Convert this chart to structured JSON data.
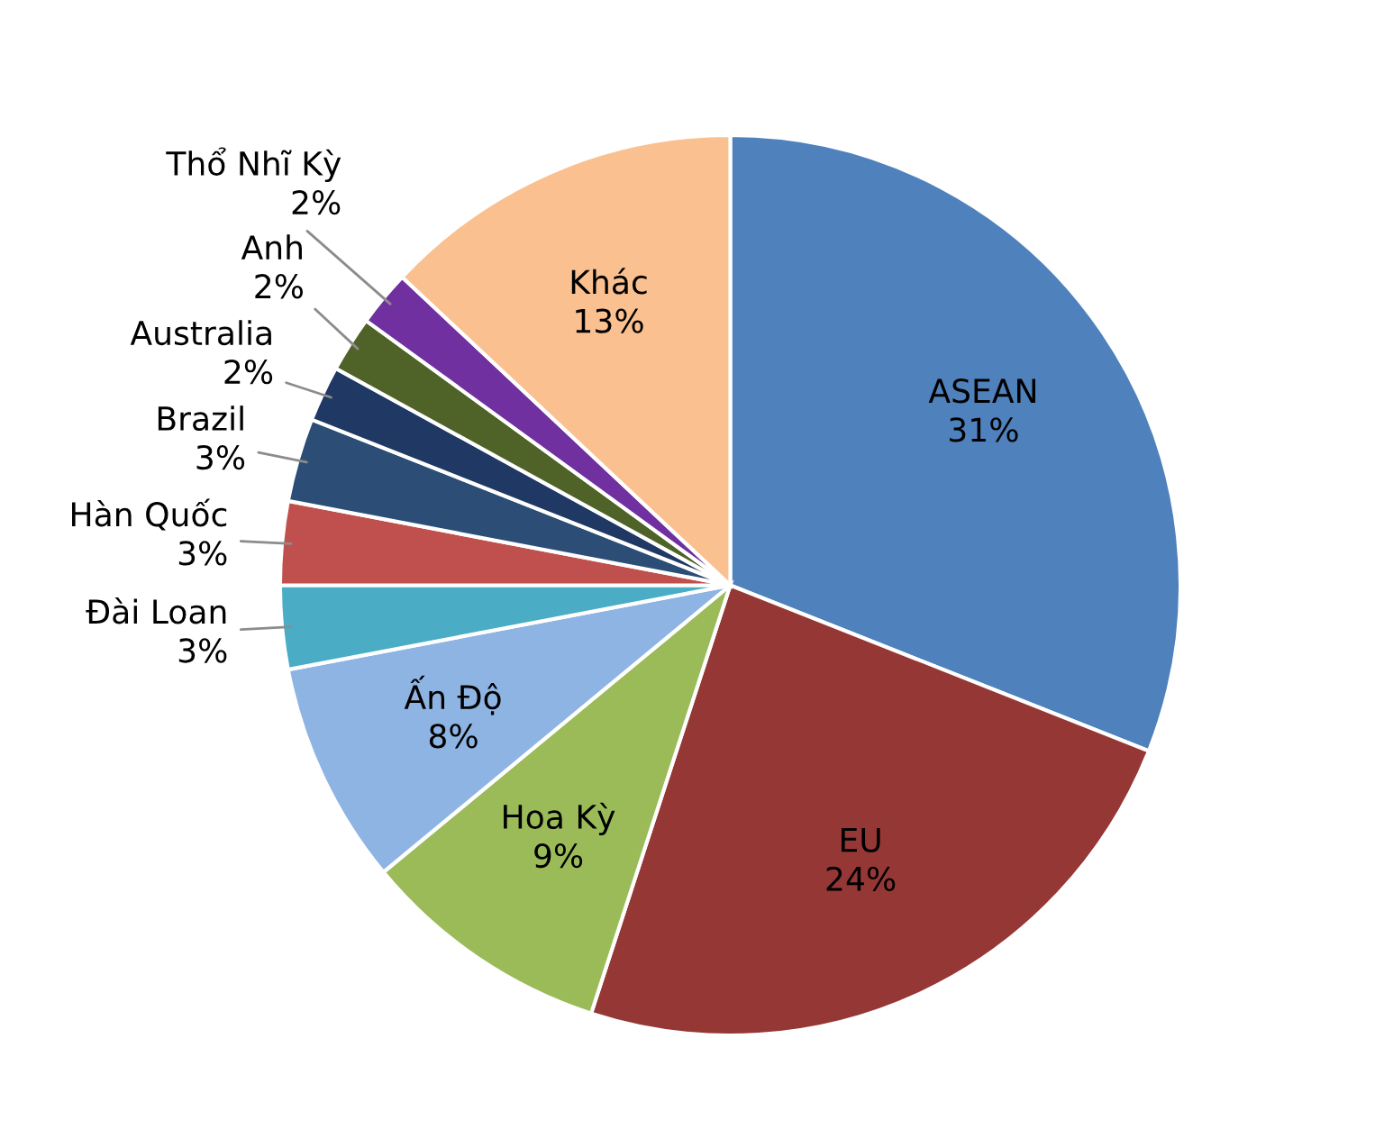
{
  "chart_data": {
    "type": "pie",
    "categories": [
      "ASEAN",
      "EU",
      "Hoa Kỳ",
      "Ấn Độ",
      "Đài Loan",
      "Hàn Quốc",
      "Brazil",
      "Australia",
      "Anh",
      "Thổ Nhĩ Kỳ",
      "Khác"
    ],
    "values": [
      31,
      24,
      9,
      8,
      3,
      3,
      3,
      2,
      2,
      2,
      13
    ],
    "value_labels": [
      "31%",
      "24%",
      "9%",
      "8%",
      "3%",
      "3%",
      "3%",
      "2%",
      "2%",
      "2%",
      "13%"
    ],
    "colors": [
      "#4f81bd",
      "#953735",
      "#9bbb59",
      "#8eb4e3",
      "#4bacc6",
      "#c0504d",
      "#2c4d75",
      "#1f3864",
      "#4f6228",
      "#7030a0",
      "#fac090"
    ],
    "legend": false
  }
}
